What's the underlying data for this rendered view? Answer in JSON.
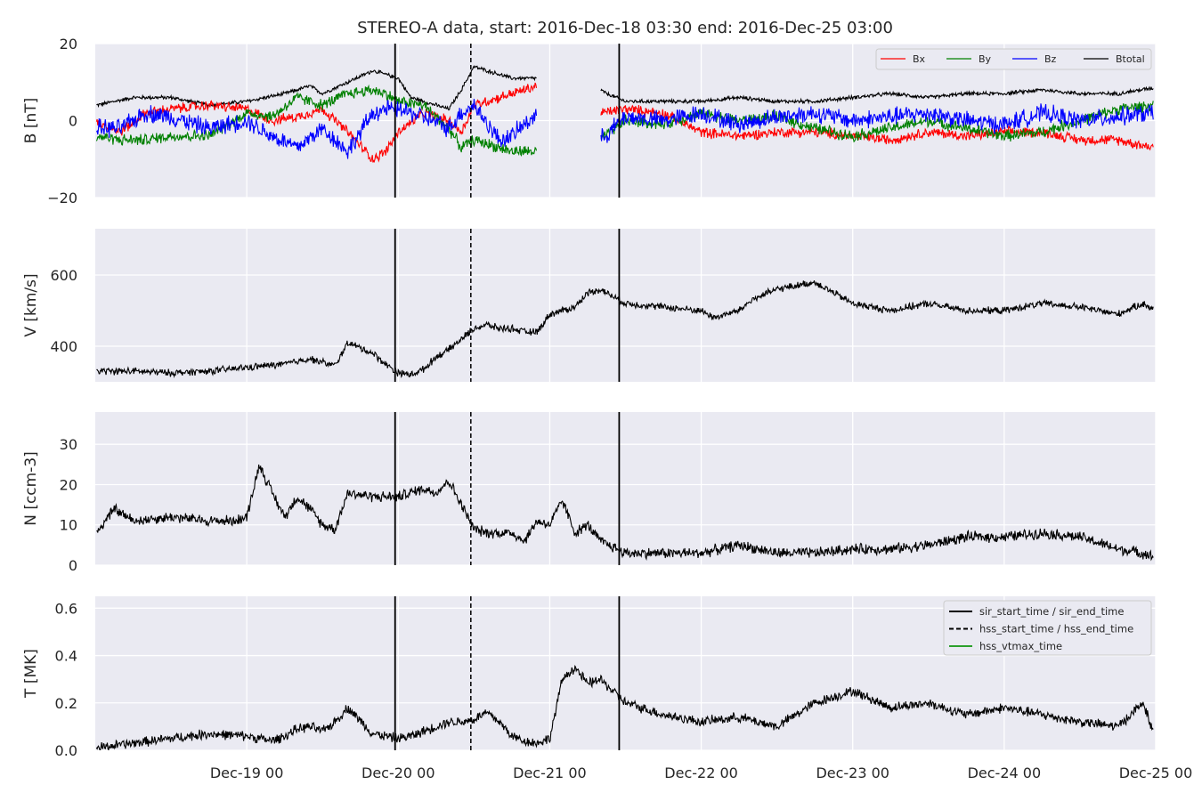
{
  "title": "STEREO-A data, start: 2016-Dec-18 03:30  end: 2016-Dec-25 03:00",
  "x_tick_labels": [
    "Dec-19 00",
    "Dec-20 00",
    "Dec-21 00",
    "Dec-22 00",
    "Dec-23 00",
    "Dec-24 00",
    "Dec-25 00"
  ],
  "colors": {
    "panel_bg": "#eaeaf2",
    "grid": "#ffffff",
    "Bx": "#ff0000",
    "By": "#008000",
    "Bz": "#0000ff",
    "Btotal": "#000000",
    "vtmax": "#2ca02c"
  },
  "chart_data": [
    {
      "type": "line",
      "ylabel": "B [nT]",
      "ylim": [
        -20,
        20
      ],
      "yticks": [
        "20",
        "0",
        "−20"
      ],
      "ytick_values": [
        20,
        0,
        -20
      ],
      "legend": {
        "placement": "top-right",
        "entries": [
          "Bx",
          "By",
          "Bz",
          "Btotal"
        ]
      },
      "x_unit": "hours since 2016-12-18 00:00",
      "x_range": [
        0.1,
        167.7
      ],
      "data_gap": [
        70.0,
        80.0
      ],
      "series": [
        {
          "name": "Btotal",
          "x": [
            0.2,
            6,
            12,
            18,
            24,
            30,
            34,
            36,
            40,
            44,
            48,
            50,
            52,
            56,
            58,
            60,
            64,
            66,
            70,
            80,
            81,
            84,
            90,
            96,
            102,
            108,
            114,
            120,
            126,
            132,
            138,
            144,
            150,
            156,
            162,
            167.6
          ],
          "values": [
            4,
            6,
            6,
            4,
            5,
            7,
            9,
            7,
            10,
            13,
            11,
            6,
            5,
            3,
            8,
            14,
            12,
            11,
            11,
            8,
            7,
            5,
            5,
            5,
            6,
            5,
            5,
            6,
            7,
            6,
            7,
            7,
            8,
            7,
            7,
            8.5
          ]
        },
        {
          "name": "Bx",
          "x": [
            0.2,
            4,
            8,
            12,
            18,
            24,
            28,
            32,
            36,
            40,
            44,
            46,
            48,
            52,
            56,
            58,
            60,
            64,
            66,
            70,
            80,
            84,
            90,
            96,
            102,
            108,
            114,
            120,
            126,
            132,
            138,
            144,
            150,
            156,
            162,
            167.6
          ],
          "values": [
            0,
            -3,
            2,
            3,
            4,
            3,
            0,
            1,
            3,
            -3,
            -10,
            -8,
            -3,
            2,
            0,
            -3,
            4,
            6,
            7,
            9,
            2,
            3,
            2,
            -3,
            -4,
            -3,
            -3,
            -4,
            -5,
            -3,
            -4,
            -3,
            -3,
            -5,
            -5,
            -7
          ]
        },
        {
          "name": "By",
          "x": [
            0.2,
            4,
            8,
            12,
            18,
            24,
            28,
            32,
            36,
            40,
            44,
            46,
            48,
            52,
            56,
            58,
            60,
            64,
            66,
            70,
            80,
            84,
            90,
            96,
            102,
            108,
            114,
            120,
            126,
            132,
            138,
            144,
            150,
            156,
            162,
            167.6
          ],
          "values": [
            -4,
            -5,
            -5,
            -4,
            -4,
            2,
            1,
            6,
            4,
            7,
            8,
            7,
            5,
            4,
            -2,
            -7,
            -5,
            -7,
            -8,
            -8,
            -5,
            0,
            -1,
            2,
            0,
            1,
            -2,
            -4,
            -2,
            0,
            -2,
            -4,
            -3,
            0,
            3,
            4
          ]
        },
        {
          "name": "Bz",
          "x": [
            0.2,
            4,
            8,
            12,
            18,
            24,
            28,
            32,
            36,
            40,
            44,
            46,
            48,
            52,
            56,
            58,
            60,
            64,
            66,
            70,
            80,
            84,
            90,
            96,
            102,
            108,
            114,
            120,
            126,
            132,
            138,
            144,
            150,
            156,
            162,
            167.6
          ],
          "values": [
            -2,
            -2,
            2,
            1,
            -2,
            0,
            -4,
            -7,
            -2,
            -8,
            2,
            3,
            3,
            1,
            -2,
            2,
            4,
            -5,
            -4,
            2,
            -5,
            1,
            0,
            2,
            -1,
            1,
            2,
            0,
            1,
            2,
            0,
            -1,
            2,
            0,
            1,
            2
          ]
        }
      ],
      "vlines": {
        "sir": [
          47.5,
          83
        ],
        "hss": [
          59.5
        ]
      }
    },
    {
      "type": "line",
      "ylabel": "V [km/s]",
      "ylim": [
        300,
        730
      ],
      "yticks": [
        "600",
        "400"
      ],
      "ytick_values": [
        600,
        400
      ],
      "x_unit": "hours since 2016-12-18 00:00",
      "series": [
        {
          "x": [
            0.2,
            6,
            12,
            18,
            24,
            30,
            34,
            36,
            38,
            40,
            44,
            46,
            48,
            50,
            52,
            54,
            56,
            58,
            60,
            62,
            64,
            66,
            68,
            70,
            72,
            74,
            76,
            78,
            80,
            82,
            84,
            90,
            96,
            98,
            100,
            102,
            104,
            108,
            114,
            120,
            126,
            132,
            138,
            144,
            150,
            156,
            162,
            166,
            167.6
          ],
          "values": [
            330,
            330,
            325,
            330,
            340,
            350,
            365,
            355,
            345,
            410,
            380,
            350,
            325,
            320,
            335,
            370,
            390,
            420,
            450,
            460,
            450,
            450,
            440,
            440,
            490,
            500,
            510,
            550,
            560,
            540,
            520,
            510,
            500,
            480,
            490,
            500,
            530,
            560,
            580,
            520,
            500,
            520,
            500,
            500,
            520,
            510,
            490,
            520,
            505
          ]
        }
      ],
      "vlines": {
        "sir": [
          47.5,
          83
        ],
        "hss": [
          59.5
        ]
      }
    },
    {
      "type": "line",
      "ylabel": "N [ccm-3]",
      "ylim": [
        0,
        38
      ],
      "yticks": [
        "30",
        "20",
        "10",
        "0"
      ],
      "ytick_values": [
        30,
        20,
        10,
        0
      ],
      "x_unit": "hours since 2016-12-18 00:00",
      "series": [
        {
          "x": [
            0.2,
            3,
            6,
            12,
            18,
            22,
            24,
            26,
            28,
            30,
            32,
            34,
            36,
            38,
            40,
            44,
            48,
            52,
            54,
            56,
            58,
            60,
            62,
            66,
            68,
            70,
            72,
            74,
            76,
            78,
            80,
            84,
            90,
            96,
            102,
            108,
            114,
            120,
            126,
            132,
            138,
            144,
            150,
            156,
            162,
            166,
            167.6
          ],
          "values": [
            8,
            14,
            11,
            12,
            11,
            11,
            12,
            25,
            18,
            12,
            17,
            14,
            10,
            9,
            18,
            17,
            17,
            19,
            18,
            21,
            15,
            9,
            8,
            8,
            6,
            11,
            10,
            16,
            8,
            10,
            6,
            3,
            3,
            3,
            5,
            3,
            3,
            4,
            4,
            5,
            7,
            7,
            8,
            7,
            4,
            3,
            2
          ]
        }
      ],
      "vlines": {
        "sir": [
          47.5,
          83
        ],
        "hss": [
          59.5
        ]
      }
    },
    {
      "type": "line",
      "ylabel": "T [MK]",
      "ylim": [
        0,
        0.65
      ],
      "yticks": [
        "0.6",
        "0.4",
        "0.2",
        "0.0"
      ],
      "ytick_values": [
        0.6,
        0.4,
        0.2,
        0.0
      ],
      "legend": {
        "placement": "top-right",
        "entries": [
          "sir_start_time / sir_end_time",
          "hss_start_time / hss_end_time",
          "hss_vtmax_time"
        ]
      },
      "x_unit": "hours since 2016-12-18 00:00",
      "series": [
        {
          "x": [
            0.2,
            6,
            12,
            18,
            24,
            28,
            30,
            32,
            34,
            36,
            38,
            40,
            44,
            48,
            50,
            52,
            56,
            58,
            60,
            62,
            64,
            66,
            68,
            70,
            72,
            74,
            76,
            78,
            80,
            82,
            84,
            90,
            96,
            102,
            108,
            114,
            120,
            126,
            132,
            138,
            144,
            150,
            156,
            162,
            166,
            167.6
          ],
          "values": [
            0.01,
            0.03,
            0.05,
            0.07,
            0.06,
            0.04,
            0.06,
            0.09,
            0.1,
            0.08,
            0.12,
            0.18,
            0.07,
            0.05,
            0.06,
            0.08,
            0.12,
            0.12,
            0.13,
            0.16,
            0.12,
            0.06,
            0.04,
            0.03,
            0.05,
            0.3,
            0.35,
            0.28,
            0.3,
            0.25,
            0.2,
            0.15,
            0.12,
            0.14,
            0.1,
            0.2,
            0.25,
            0.18,
            0.2,
            0.15,
            0.18,
            0.15,
            0.12,
            0.1,
            0.2,
            0.08
          ]
        }
      ],
      "vlines": {
        "sir": [
          47.5,
          83
        ],
        "hss": [
          59.5
        ]
      }
    }
  ]
}
